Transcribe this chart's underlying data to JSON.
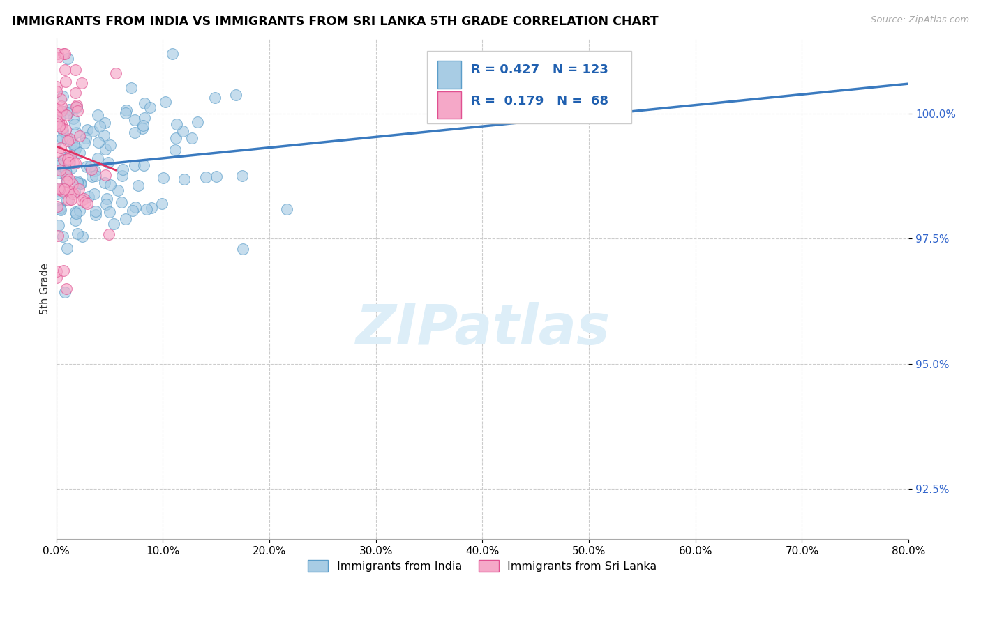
{
  "title": "IMMIGRANTS FROM INDIA VS IMMIGRANTS FROM SRI LANKA 5TH GRADE CORRELATION CHART",
  "source": "Source: ZipAtlas.com",
  "ylabel": "5th Grade",
  "xlim": [
    0.0,
    80.0
  ],
  "ylim": [
    91.5,
    101.5
  ],
  "xticks": [
    0.0,
    10.0,
    20.0,
    30.0,
    40.0,
    50.0,
    60.0,
    70.0,
    80.0
  ],
  "yticks": [
    92.5,
    95.0,
    97.5,
    100.0
  ],
  "ytick_labels": [
    "92.5%",
    "95.0%",
    "97.5%",
    "100.0%"
  ],
  "xtick_labels": [
    "0.0%",
    "10.0%",
    "20.0%",
    "30.0%",
    "40.0%",
    "50.0%",
    "60.0%",
    "70.0%",
    "80.0%"
  ],
  "india_R": 0.427,
  "india_N": 123,
  "srilanka_R": 0.179,
  "srilanka_N": 68,
  "india_color": "#a8cce4",
  "india_edge_color": "#5b9dc9",
  "srilanka_color": "#f5a8c8",
  "srilanka_edge_color": "#e05090",
  "india_line_color": "#3a7abf",
  "srilanka_line_color": "#e03060",
  "watermark_color": "#ddeef8",
  "legend_india": "Immigrants from India",
  "legend_srilanka": "Immigrants from Sri Lanka",
  "legend_text_color": "#2060b0",
  "ytick_color": "#3366cc"
}
